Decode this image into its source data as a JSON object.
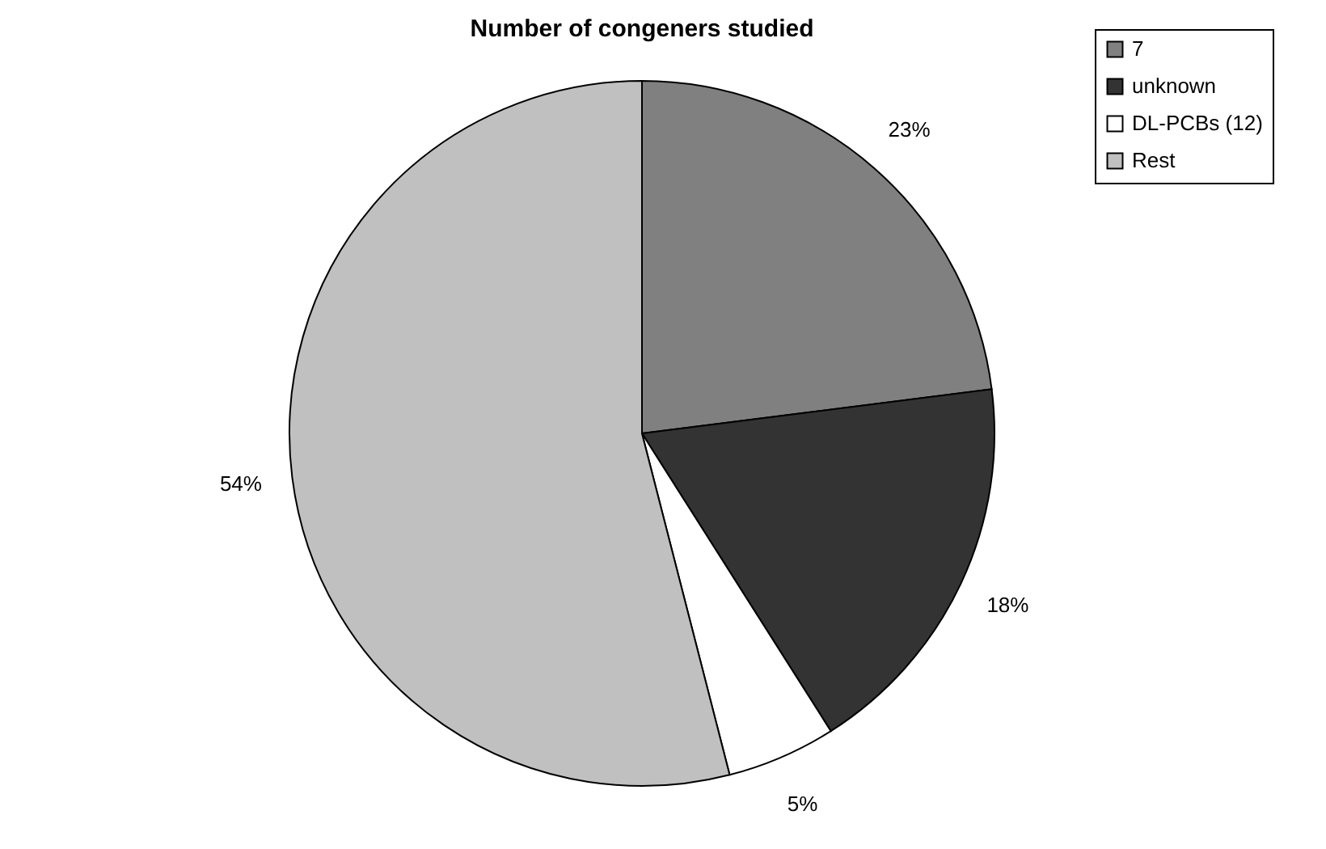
{
  "chart_data": {
    "type": "pie",
    "title": "Number of congeners studied",
    "categories": [
      "7",
      "unknown",
      "DL-PCBs (12)",
      "Rest"
    ],
    "values": [
      23,
      18,
      5,
      54
    ],
    "colors": [
      "#808080",
      "#333333",
      "#ffffff",
      "#c0c0c0"
    ],
    "value_labels": [
      "23%",
      "18%",
      "5%",
      "54%"
    ],
    "legend": "right"
  }
}
